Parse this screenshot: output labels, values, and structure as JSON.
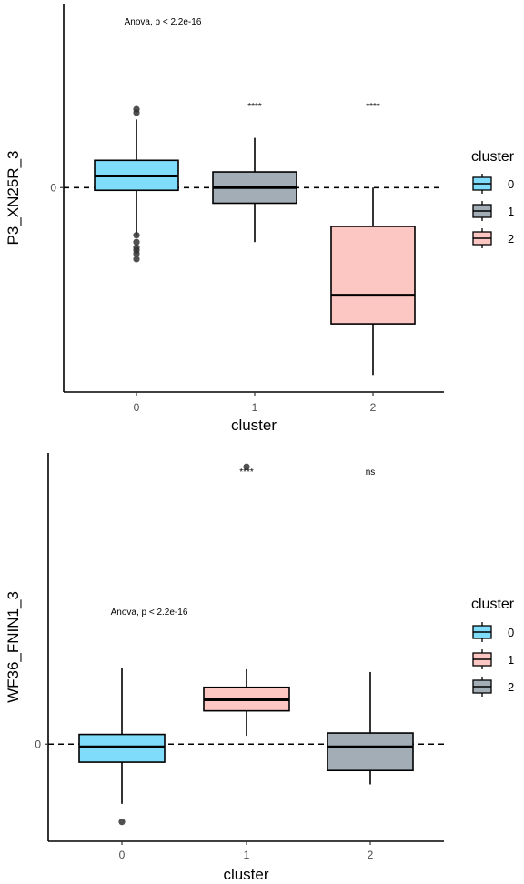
{
  "chart_data": [
    {
      "type": "box",
      "xlabel": "cluster",
      "ylabel": "P3_XN25R_3",
      "categories": [
        "0",
        "1",
        "2"
      ],
      "y_ticks": [
        0
      ],
      "ylim": [
        -3.0,
        2.7
      ],
      "reference_line": {
        "y": 0,
        "style": "dashed"
      },
      "annotation": "Anova, p < 2.2e-16",
      "boxes": [
        {
          "cluster": "0",
          "color": "#7fdcfa",
          "q1": -0.04,
          "median": 0.17,
          "q3": 0.4,
          "whisker_low": -0.7,
          "whisker_high": 1.0,
          "outliers": [
            1.15,
            1.1,
            -0.7,
            -0.8,
            -0.88,
            -0.92,
            -0.97,
            -1.05
          ]
        },
        {
          "cluster": "1",
          "color": "#a2adb6",
          "q1": -0.23,
          "median": 0.0,
          "q3": 0.23,
          "whisker_low": -0.8,
          "whisker_high": 0.73,
          "outliers": []
        },
        {
          "cluster": "2",
          "color": "#fcc6c2",
          "q1": -2.0,
          "median": -1.58,
          "q3": -0.57,
          "whisker_low": -2.75,
          "whisker_high": 0.0,
          "outliers": []
        }
      ],
      "significance": [
        {
          "cluster": "1",
          "label": "****"
        },
        {
          "cluster": "2",
          "label": "****"
        }
      ],
      "legend": {
        "title": "cluster",
        "position": "right",
        "entries": [
          {
            "label": "0",
            "color": "#7fdcfa"
          },
          {
            "label": "1",
            "color": "#a2adb6"
          },
          {
            "label": "2",
            "color": "#fcc6c2"
          }
        ]
      }
    },
    {
      "type": "box",
      "xlabel": "cluster",
      "ylabel": "WF36_FNIN1_3",
      "categories": [
        "0",
        "1",
        "2"
      ],
      "y_ticks": [
        0
      ],
      "ylim": [
        -0.7,
        2.1
      ],
      "reference_line": {
        "y": 0,
        "style": "dashed"
      },
      "annotation": "Anova, p < 2.2e-16",
      "boxes": [
        {
          "cluster": "0",
          "color": "#7fdcfa",
          "q1": -0.13,
          "median": -0.02,
          "q3": 0.07,
          "whisker_low": -0.43,
          "whisker_high": 0.55,
          "outliers": [
            -0.56
          ]
        },
        {
          "cluster": "1",
          "color": "#fcc6c2",
          "q1": 0.24,
          "median": 0.32,
          "q3": 0.41,
          "whisker_low": 0.06,
          "whisker_high": 0.54,
          "outliers": [
            2.0
          ]
        },
        {
          "cluster": "2",
          "color": "#a2adb6",
          "q1": -0.19,
          "median": -0.02,
          "q3": 0.08,
          "whisker_low": -0.29,
          "whisker_high": 0.52,
          "outliers": []
        }
      ],
      "significance": [
        {
          "cluster": "1",
          "label": "****"
        },
        {
          "cluster": "2",
          "label": "ns"
        }
      ],
      "legend": {
        "title": "cluster",
        "position": "right",
        "entries": [
          {
            "label": "0",
            "color": "#7fdcfa"
          },
          {
            "label": "1",
            "color": "#fcc6c2"
          },
          {
            "label": "2",
            "color": "#a2adb6"
          }
        ]
      }
    }
  ]
}
